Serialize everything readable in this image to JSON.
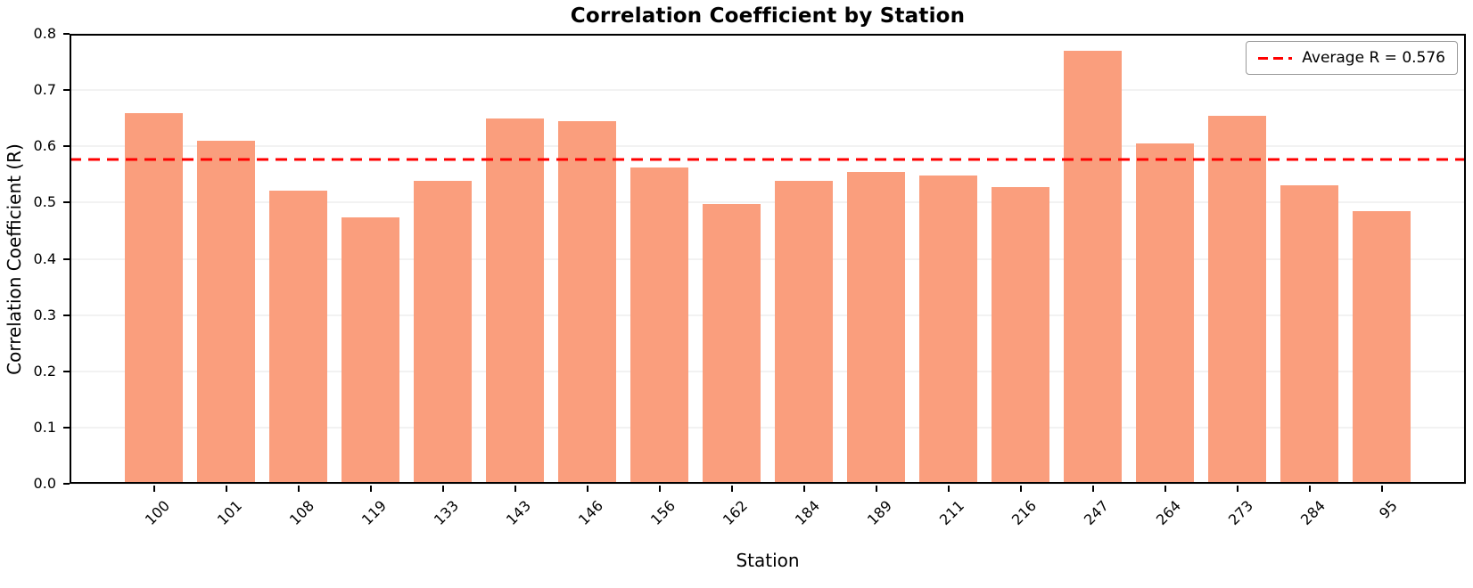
{
  "chart_data": {
    "type": "bar",
    "title": "Correlation Coefficient by Station",
    "xlabel": "Station",
    "ylabel": "Correlation Coefficient (R)",
    "categories": [
      "100",
      "101",
      "108",
      "119",
      "133",
      "143",
      "146",
      "156",
      "162",
      "184",
      "189",
      "211",
      "216",
      "247",
      "264",
      "273",
      "284",
      "95"
    ],
    "values": [
      0.659,
      0.61,
      0.521,
      0.473,
      0.539,
      0.65,
      0.645,
      0.563,
      0.497,
      0.538,
      0.554,
      0.548,
      0.527,
      0.77,
      0.605,
      0.655,
      0.531,
      0.484
    ],
    "ylim": [
      0.0,
      0.8
    ],
    "yticks": [
      "0.0",
      "0.1",
      "0.2",
      "0.3",
      "0.4",
      "0.5",
      "0.6",
      "0.7",
      "0.8"
    ],
    "grid": true,
    "legend_position": "upper right",
    "bar_color": "#fa9e7d",
    "grid_color": "#e4e4e4",
    "average_line": {
      "value": 0.576,
      "color": "#ff0000",
      "style": "dashed",
      "label": "Average R = 0.576"
    }
  }
}
